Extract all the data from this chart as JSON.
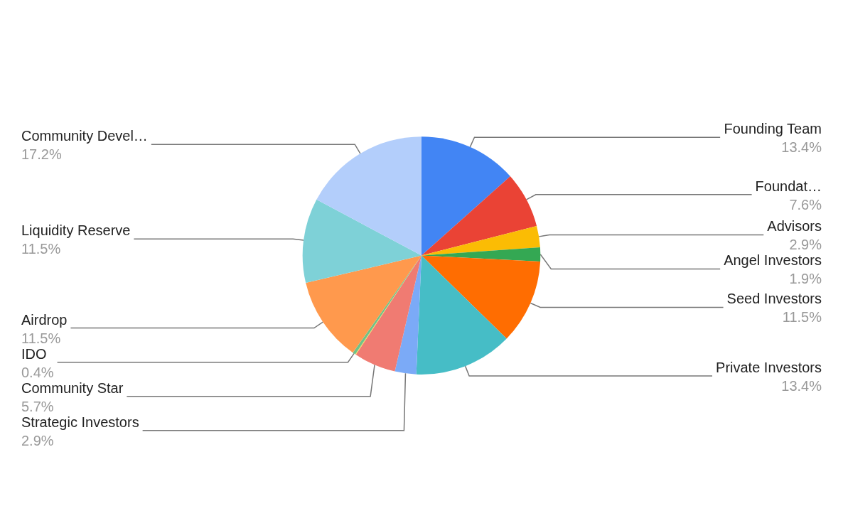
{
  "chart_data": {
    "type": "pie",
    "categories": [
      "Founding Team",
      "Foundat…",
      "Advisors",
      "Angel Investors",
      "Seed Investors",
      "Private Investors",
      "Strategic Investors",
      "Community Star",
      null,
      "IDO",
      "Airdrop",
      "Liquidity Reserve",
      "Community Devel…"
    ],
    "values": [
      13.4,
      7.6,
      2.9,
      1.9,
      11.5,
      13.4,
      2.9,
      5.7,
      0.1,
      0.4,
      11.5,
      11.5,
      17.2
    ],
    "value_labels": [
      "13.4%",
      "7.6%",
      "2.9%",
      "1.9%",
      "11.5%",
      "13.4%",
      "2.9%",
      "5.7%",
      null,
      "0.4%",
      "11.5%",
      "11.5%",
      "17.2%"
    ],
    "colors": [
      "#4285f4",
      "#ea4335",
      "#fbbc04",
      "#34a853",
      "#ff6d01",
      "#46bdc6",
      "#7baaf7",
      "#f07b72",
      "#fcd04f",
      "#71c287",
      "#ff994d",
      "#7ed1d7",
      "#b3cefb"
    ],
    "legend": false
  }
}
